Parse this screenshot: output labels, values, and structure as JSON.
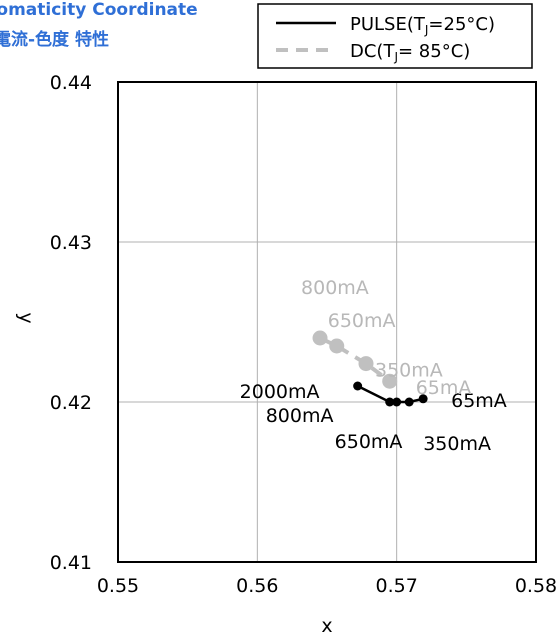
{
  "chart_data": {
    "type": "line",
    "title": "romaticity Coordinate",
    "subtitle": "電流-色度 特性",
    "xlabel": "x",
    "ylabel": "y",
    "xlim": [
      0.55,
      0.58
    ],
    "ylim": [
      0.41,
      0.44
    ],
    "x_ticks": [
      "0.55",
      "0.56",
      "0.57",
      "0.58"
    ],
    "y_ticks": [
      "0.41",
      "0.42",
      "0.43",
      "0.44"
    ],
    "x_tick_values": [
      0.55,
      0.56,
      0.57,
      0.58
    ],
    "y_tick_values": [
      0.41,
      0.42,
      0.43,
      0.44
    ],
    "grid": true,
    "legend_position": "top-right",
    "series": [
      {
        "name": "PULSE(TJ=25°C)",
        "legend_main": "PULSE(T",
        "legend_sub": "J",
        "legend_tail": "=25°C)",
        "color": "#000000",
        "style": "solid",
        "x": [
          0.5672,
          0.5695,
          0.57,
          0.5709,
          0.5719
        ],
        "y": [
          0.421,
          0.42,
          0.42,
          0.42,
          0.4202
        ],
        "labels": [
          "2000mA",
          "800mA",
          "650mA",
          "350mA",
          "65mA"
        ]
      },
      {
        "name": "DC(TJ= 85°C)",
        "legend_main": "DC(T",
        "legend_sub": "J",
        "legend_tail": "= 85°C)",
        "color": "#c0c0c0",
        "style": "dashed",
        "x": [
          0.5645,
          0.5657,
          0.5678,
          0.5695
        ],
        "y": [
          0.424,
          0.4235,
          0.4224,
          0.4213
        ],
        "labels": [
          "800mA",
          "650mA",
          "350mA",
          "65mA"
        ]
      }
    ]
  }
}
